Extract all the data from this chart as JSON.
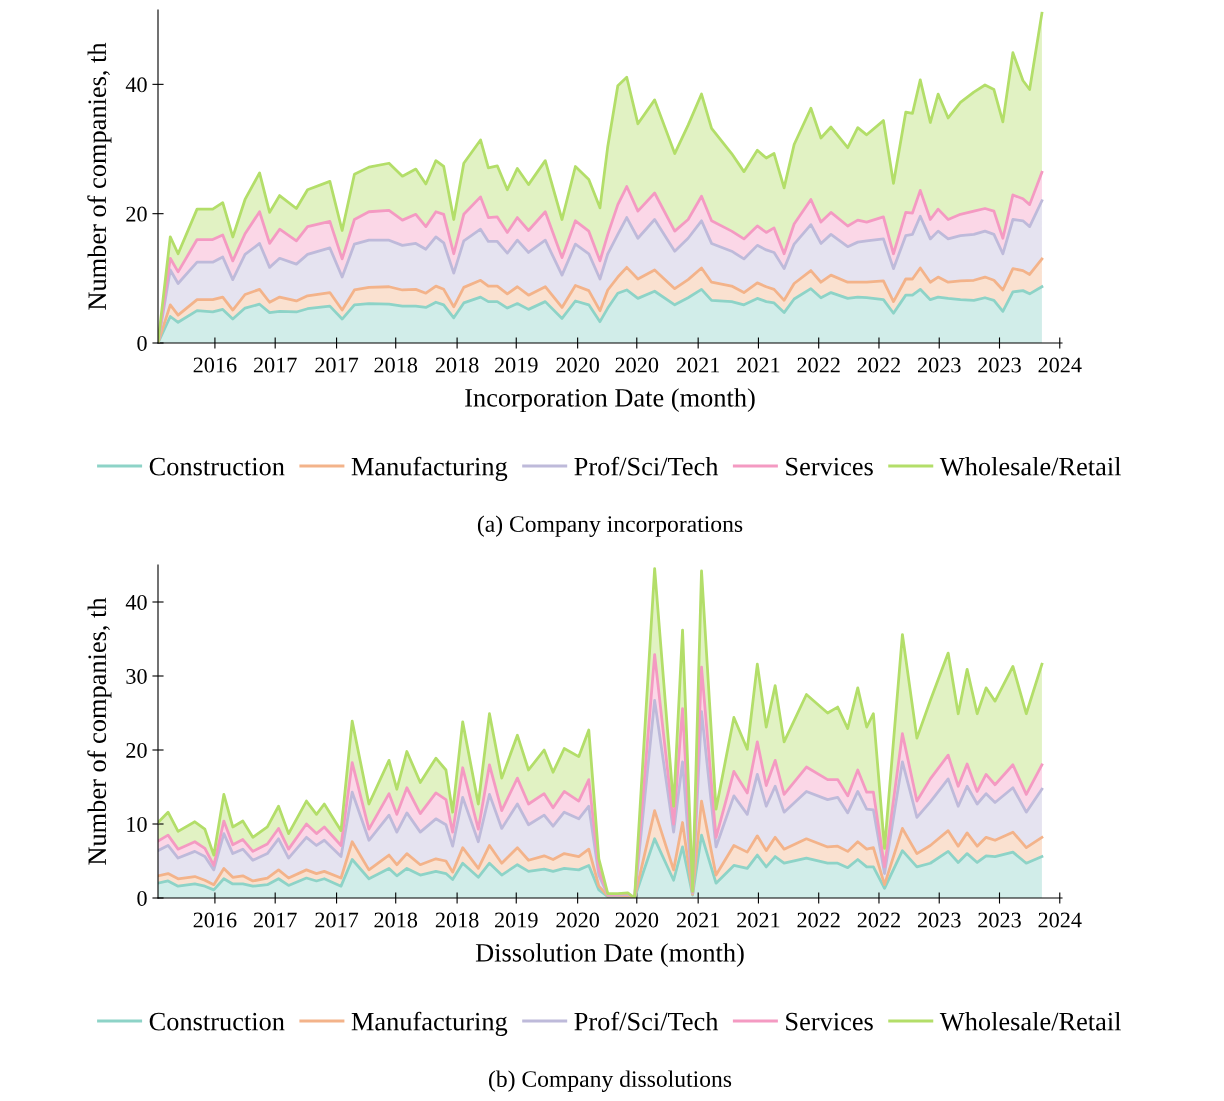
{
  "chart_data": [
    {
      "type": "area",
      "stacked": true,
      "xlabel": "Incorporation Date (month)",
      "ylabel": "Number of companies, th",
      "legend": "bottom",
      "annotations": [
        "(a) Company incorporations"
      ],
      "xlim": [
        2015.77,
        2023.87
      ],
      "ylim": [
        0,
        51.5
      ],
      "yticks": [
        0,
        20,
        40
      ],
      "xticks": [
        {
          "value": 2016.28,
          "label": "2016"
        },
        {
          "value": 2016.82,
          "label": "2017"
        },
        {
          "value": 2017.37,
          "label": "2017"
        },
        {
          "value": 2017.9,
          "label": "2018"
        },
        {
          "value": 2018.45,
          "label": "2018"
        },
        {
          "value": 2018.98,
          "label": "2019"
        },
        {
          "value": 2019.53,
          "label": "2020"
        },
        {
          "value": 2020.06,
          "label": "2020"
        },
        {
          "value": 2020.61,
          "label": "2021"
        },
        {
          "value": 2021.15,
          "label": "2021"
        },
        {
          "value": 2021.69,
          "label": "2022"
        },
        {
          "value": 2022.23,
          "label": "2022"
        },
        {
          "value": 2022.77,
          "label": "2023"
        },
        {
          "value": 2023.31,
          "label": "2023"
        },
        {
          "value": 2023.85,
          "label": "2024"
        }
      ],
      "x": [
        2015.77,
        2015.88,
        2015.95,
        2016.12,
        2016.26,
        2016.35,
        2016.44,
        2016.55,
        2016.68,
        2016.77,
        2016.86,
        2017.01,
        2017.11,
        2017.31,
        2017.42,
        2017.53,
        2017.66,
        2017.84,
        2017.96,
        2018.08,
        2018.17,
        2018.26,
        2018.33,
        2018.42,
        2018.51,
        2018.66,
        2018.73,
        2018.81,
        2018.9,
        2018.99,
        2019.09,
        2019.24,
        2019.39,
        2019.51,
        2019.63,
        2019.73,
        2019.8,
        2019.89,
        2019.97,
        2020.07,
        2020.22,
        2020.4,
        2020.52,
        2020.64,
        2020.73,
        2020.91,
        2021.02,
        2021.14,
        2021.22,
        2021.29,
        2021.38,
        2021.47,
        2021.62,
        2021.71,
        2021.8,
        2021.95,
        2022.04,
        2022.12,
        2022.27,
        2022.36,
        2022.47,
        2022.53,
        2022.6,
        2022.69,
        2022.76,
        2022.85,
        2022.96,
        2023.08,
        2023.18,
        2023.26,
        2023.34,
        2023.43,
        2023.52,
        2023.58,
        2023.69
      ],
      "series": [
        {
          "name": "Construction",
          "color": "#8dd3c7",
          "values": [
            0,
            4.1,
            3.2,
            5.0,
            4.8,
            5.2,
            3.7,
            5.4,
            6.0,
            4.7,
            4.9,
            4.8,
            5.3,
            5.7,
            3.7,
            5.9,
            6.1,
            6.0,
            5.7,
            5.7,
            5.5,
            6.3,
            5.9,
            3.9,
            6.2,
            7.1,
            6.4,
            6.4,
            5.4,
            6.1,
            5.2,
            6.4,
            3.8,
            6.5,
            5.9,
            3.3,
            5.4,
            7.7,
            8.2,
            6.9,
            8.0,
            5.9,
            7.0,
            8.3,
            6.6,
            6.4,
            5.9,
            6.9,
            6.4,
            6.2,
            4.7,
            6.8,
            8.4,
            7.0,
            7.8,
            6.9,
            7.1,
            7.0,
            6.7,
            4.6,
            7.4,
            7.4,
            8.3,
            6.7,
            7.1,
            6.9,
            6.7,
            6.6,
            7.0,
            6.6,
            4.9,
            7.9,
            8.1,
            7.6,
            8.7
          ]
        },
        {
          "name": "Manufacturing",
          "color": "#f3b38a",
          "values": [
            0,
            1.8,
            1.1,
            1.7,
            1.9,
            1.9,
            1.4,
            2.1,
            2.3,
            1.6,
            2.2,
            1.7,
            2.0,
            2.1,
            1.4,
            2.3,
            2.5,
            2.7,
            2.5,
            2.6,
            2.2,
            2.5,
            2.4,
            1.7,
            2.4,
            2.6,
            2.4,
            2.4,
            2.2,
            2.6,
            2.2,
            2.3,
            1.7,
            2.4,
            2.2,
            1.7,
            2.8,
            2.5,
            3.5,
            3.0,
            3.3,
            2.5,
            2.8,
            3.3,
            2.8,
            2.4,
            1.9,
            2.4,
            2.3,
            2.1,
            1.9,
            2.4,
            2.8,
            2.4,
            2.7,
            2.5,
            2.3,
            2.4,
            2.9,
            1.8,
            2.5,
            2.5,
            3.3,
            2.7,
            3.1,
            2.5,
            2.9,
            3.1,
            3.2,
            3.1,
            3.3,
            3.6,
            3.1,
            3.0,
            4.3
          ]
        },
        {
          "name": "Prof/Sci/Tech",
          "color": "#bebada",
          "values": [
            0,
            5.4,
            4.9,
            5.8,
            5.8,
            6.2,
            4.7,
            6.2,
            7.1,
            5.4,
            6.0,
            5.7,
            6.4,
            6.9,
            5.1,
            7.1,
            7.3,
            7.2,
            6.9,
            7.1,
            6.8,
            7.6,
            7.2,
            5.2,
            7.2,
            7.9,
            6.9,
            6.9,
            6.3,
            7.2,
            6.6,
            7.2,
            5.0,
            6.4,
            5.7,
            4.9,
            5.6,
            6.6,
            7.7,
            6.3,
            7.8,
            5.8,
            6.4,
            7.3,
            6.0,
            5.4,
            5.2,
            5.8,
            5.7,
            5.7,
            4.9,
            6.1,
            7.1,
            6.0,
            6.3,
            5.5,
            6.2,
            6.4,
            6.5,
            5.1,
            6.7,
            6.9,
            8.0,
            6.7,
            7.1,
            6.7,
            7.0,
            7.1,
            7.1,
            7.1,
            5.6,
            7.6,
            7.7,
            7.4,
            9.0
          ]
        },
        {
          "name": "Services",
          "color": "#f49ac2",
          "values": [
            0,
            1.8,
            1.8,
            3.5,
            3.5,
            3.4,
            2.9,
            3.2,
            4.9,
            3.7,
            4.5,
            3.6,
            4.3,
            4.1,
            2.8,
            3.8,
            4.4,
            4.6,
            3.9,
            4.5,
            3.5,
            3.9,
            4.4,
            3.0,
            4.1,
            5.0,
            3.7,
            3.8,
            3.2,
            3.5,
            3.4,
            4.4,
            2.7,
            3.6,
            3.5,
            2.8,
            3.0,
            4.6,
            4.8,
            4.2,
            4.1,
            3.1,
            2.9,
            3.8,
            3.5,
            3.1,
            3.1,
            3.0,
            2.7,
            3.8,
            2.3,
            3.1,
            3.9,
            3.3,
            3.4,
            3.2,
            3.4,
            2.9,
            3.4,
            2.3,
            3.6,
            3.3,
            4.0,
            3.0,
            3.4,
            3.0,
            3.3,
            3.6,
            3.5,
            3.6,
            2.4,
            3.8,
            3.4,
            3.4,
            4.4
          ]
        },
        {
          "name": "Wholesale/Retail",
          "color": "#b3de69",
          "values": [
            0,
            3.3,
            2.8,
            4.7,
            4.7,
            5.0,
            3.7,
            5.3,
            6.0,
            4.8,
            5.2,
            5.0,
            5.7,
            6.2,
            4.4,
            7.0,
            6.9,
            7.3,
            6.8,
            7.0,
            6.6,
            7.9,
            7.4,
            5.3,
            7.9,
            8.8,
            7.7,
            7.9,
            6.6,
            7.6,
            7.1,
            7.9,
            5.9,
            8.4,
            8.0,
            8.2,
            13.6,
            18.4,
            16.9,
            13.5,
            14.4,
            12.0,
            14.6,
            15.8,
            14.3,
            12.0,
            10.4,
            11.7,
            11.5,
            11.5,
            10.2,
            12.3,
            14.1,
            13.0,
            13.2,
            12.1,
            14.3,
            13.5,
            14.9,
            10.9,
            15.5,
            15.4,
            17.1,
            15.0,
            17.8,
            15.7,
            17.3,
            18.4,
            19.1,
            18.8,
            18.0,
            22.0,
            18.3,
            17.8,
            24.6
          ]
        }
      ]
    },
    {
      "type": "area",
      "stacked": true,
      "xlabel": "Dissolution Date (month)",
      "ylabel": "Number of companies, th",
      "legend": "bottom",
      "annotations": [
        "(b) Company dissolutions"
      ],
      "xlim": [
        2015.77,
        2023.87
      ],
      "ylim": [
        0,
        45
      ],
      "yticks": [
        0,
        10,
        20,
        30,
        40
      ],
      "xticks": [
        {
          "value": 2016.28,
          "label": "2016"
        },
        {
          "value": 2016.82,
          "label": "2017"
        },
        {
          "value": 2017.37,
          "label": "2017"
        },
        {
          "value": 2017.9,
          "label": "2018"
        },
        {
          "value": 2018.45,
          "label": "2018"
        },
        {
          "value": 2018.98,
          "label": "2019"
        },
        {
          "value": 2019.53,
          "label": "2020"
        },
        {
          "value": 2020.06,
          "label": "2020"
        },
        {
          "value": 2020.61,
          "label": "2021"
        },
        {
          "value": 2021.15,
          "label": "2021"
        },
        {
          "value": 2021.69,
          "label": "2022"
        },
        {
          "value": 2022.23,
          "label": "2022"
        },
        {
          "value": 2022.77,
          "label": "2023"
        },
        {
          "value": 2023.31,
          "label": "2023"
        },
        {
          "value": 2023.85,
          "label": "2024"
        }
      ],
      "x": [
        2015.77,
        2015.86,
        2015.95,
        2016.1,
        2016.19,
        2016.27,
        2016.36,
        2016.44,
        2016.53,
        2016.62,
        2016.75,
        2016.85,
        2016.94,
        2017.1,
        2017.19,
        2017.26,
        2017.41,
        2017.51,
        2017.66,
        2017.84,
        2017.91,
        2018.0,
        2018.12,
        2018.26,
        2018.35,
        2018.41,
        2018.5,
        2018.64,
        2018.74,
        2018.85,
        2018.99,
        2019.09,
        2019.23,
        2019.31,
        2019.41,
        2019.54,
        2019.63,
        2019.72,
        2019.8,
        2019.89,
        2019.98,
        2020.04,
        2020.22,
        2020.39,
        2020.47,
        2020.56,
        2020.64,
        2020.77,
        2020.93,
        2021.05,
        2021.14,
        2021.22,
        2021.3,
        2021.38,
        2021.58,
        2021.77,
        2021.86,
        2021.95,
        2022.04,
        2022.12,
        2022.18,
        2022.28,
        2022.44,
        2022.57,
        2022.69,
        2022.85,
        2022.94,
        2023.02,
        2023.11,
        2023.19,
        2023.27,
        2023.43,
        2023.55,
        2023.69
      ],
      "series": [
        {
          "name": "Construction",
          "color": "#8dd3c7",
          "values": [
            2.0,
            2.3,
            1.6,
            1.9,
            1.6,
            1.1,
            2.6,
            1.9,
            1.9,
            1.6,
            1.8,
            2.6,
            1.7,
            2.7,
            2.3,
            2.6,
            1.6,
            5.2,
            2.6,
            4.0,
            3.0,
            4.0,
            3.1,
            3.6,
            3.3,
            2.5,
            4.7,
            2.8,
            4.7,
            3.1,
            4.5,
            3.6,
            3.9,
            3.6,
            4.0,
            3.8,
            4.4,
            1.1,
            0.2,
            0.2,
            0.2,
            0,
            8.0,
            2.4,
            6.9,
            0.4,
            8.5,
            2.0,
            4.4,
            4.0,
            5.8,
            4.2,
            5.6,
            4.7,
            5.4,
            4.7,
            4.7,
            4.1,
            5.2,
            4.2,
            4.2,
            1.3,
            6.4,
            4.2,
            4.7,
            6.3,
            4.8,
            6.0,
            4.8,
            5.7,
            5.6,
            6.2,
            4.7,
            5.6
          ]
        },
        {
          "name": "Manufacturing",
          "color": "#f3b38a",
          "values": [
            1.0,
            1.0,
            1.0,
            1.0,
            0.8,
            0.7,
            1.4,
            0.9,
            1.1,
            0.7,
            0.9,
            1.2,
            1.0,
            1.1,
            1.0,
            1.0,
            1.1,
            2.4,
            1.2,
            1.8,
            1.5,
            2.0,
            1.4,
            1.7,
            1.7,
            1.0,
            2.1,
            1.2,
            2.4,
            1.6,
            2.3,
            1.5,
            1.8,
            1.6,
            2.0,
            1.8,
            2.2,
            0.5,
            0.1,
            0.1,
            0.1,
            0,
            3.8,
            1.4,
            3.3,
            0.1,
            4.6,
            1.1,
            2.7,
            2.2,
            2.6,
            2.2,
            2.6,
            1.9,
            2.6,
            2.2,
            2.3,
            2.2,
            2.4,
            2.4,
            2.6,
            0.5,
            3.0,
            1.8,
            2.4,
            2.8,
            2.2,
            2.8,
            2.2,
            2.5,
            2.2,
            2.7,
            2.1,
            2.6
          ]
        },
        {
          "name": "Prof/Sci/Tech",
          "color": "#bebada",
          "values": [
            3.4,
            3.8,
            2.8,
            3.4,
            3.2,
            2.0,
            4.7,
            3.2,
            3.6,
            2.8,
            3.3,
            4.2,
            2.7,
            4.4,
            3.8,
            4.2,
            2.9,
            6.7,
            4.0,
            5.4,
            4.4,
            5.5,
            4.4,
            5.4,
            4.9,
            3.5,
            6.8,
            3.6,
            6.9,
            4.7,
            5.9,
            4.8,
            5.5,
            4.5,
            5.6,
            5.1,
            5.8,
            1.5,
            0.1,
            0.1,
            0.2,
            0,
            14.9,
            5.1,
            8.2,
            0.2,
            12.1,
            3.8,
            6.7,
            5.1,
            8.3,
            6.0,
            6.9,
            5.0,
            6.4,
            6.4,
            6.6,
            5.2,
            6.8,
            5.4,
            5.1,
            1.5,
            9.0,
            4.9,
            5.9,
            7.0,
            5.4,
            6.3,
            5.7,
            5.9,
            5.1,
            6.0,
            4.8,
            6.5
          ]
        },
        {
          "name": "Services",
          "color": "#f49ac2",
          "values": [
            1.3,
            1.4,
            1.2,
            1.3,
            1.1,
            0.6,
            1.7,
            1.2,
            1.3,
            1.2,
            1.3,
            1.4,
            1.2,
            1.8,
            1.6,
            1.8,
            1.5,
            4.0,
            1.5,
            2.9,
            2.4,
            3.4,
            2.5,
            3.5,
            3.4,
            1.9,
            4.0,
            1.7,
            4.0,
            2.4,
            3.5,
            2.8,
            2.9,
            2.5,
            2.8,
            2.4,
            3.6,
            0.7,
            0.1,
            0.1,
            0.1,
            0,
            6.2,
            1.1,
            7.2,
            0.1,
            6.0,
            1.3,
            3.3,
            2.9,
            4.4,
            2.8,
            3.5,
            2.4,
            3.3,
            2.7,
            2.4,
            2.3,
            2.9,
            2.3,
            2.4,
            0.9,
            3.8,
            2.2,
            3.1,
            3.2,
            2.7,
            3.0,
            1.7,
            2.6,
            2.4,
            3.1,
            2.4,
            3.3
          ]
        },
        {
          "name": "Wholesale/Retail",
          "color": "#b3de69",
          "values": [
            2.5,
            3.1,
            2.4,
            2.7,
            2.6,
            1.4,
            3.6,
            2.4,
            2.5,
            1.9,
            2.3,
            3.0,
            2.1,
            3.1,
            2.6,
            3.1,
            2.0,
            5.6,
            3.4,
            4.5,
            3.4,
            4.9,
            4.2,
            4.7,
            4.0,
            2.7,
            6.2,
            3.4,
            6.9,
            4.4,
            5.8,
            4.6,
            5.9,
            4.8,
            5.8,
            6.0,
            6.7,
            1.5,
            0.1,
            0.1,
            0.1,
            0,
            11.6,
            2.4,
            10.6,
            0.1,
            13.0,
            3.8,
            7.3,
            5.9,
            10.5,
            7.9,
            10.1,
            7.1,
            9.8,
            9.0,
            9.8,
            9.1,
            11.1,
            8.8,
            10.6,
            2.5,
            13.4,
            8.5,
            10.6,
            13.8,
            9.8,
            12.8,
            10.5,
            11.7,
            11.3,
            13.3,
            10.9,
            13.6
          ]
        }
      ]
    }
  ]
}
